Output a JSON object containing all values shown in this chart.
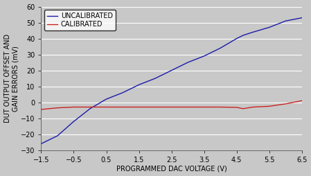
{
  "xlabel": "PROGRAMMED DAC VOLTAGE (V)",
  "ylabel": "DUT OUTPUT OFFSET AND\nGAIN ERRORS (mV)",
  "xlim": [
    -1.5,
    6.5
  ],
  "ylim": [
    -30,
    60
  ],
  "xticks": [
    -1.5,
    -0.5,
    0.5,
    1.5,
    2.5,
    3.5,
    4.5,
    5.5,
    6.5
  ],
  "yticks": [
    -30,
    -20,
    -10,
    0,
    10,
    20,
    30,
    40,
    50,
    60
  ],
  "plot_bg_color": "#c8c8c8",
  "fig_bg_color": "#c8c8c8",
  "grid_color": "#b0b0b0",
  "uncalibrated_color": "#1a1aaa",
  "calibrated_color": "#cc2222",
  "uncalibrated_label": "UNCALIBRATED",
  "calibrated_label": "CALIBRATED",
  "uncalibrated_x": [
    -1.5,
    -1.0,
    -0.5,
    0.0,
    0.5,
    1.0,
    1.5,
    2.0,
    2.5,
    3.0,
    3.5,
    3.8,
    4.0,
    4.5,
    4.7,
    5.0,
    5.5,
    6.0,
    6.5
  ],
  "uncalibrated_y": [
    -26,
    -21,
    -12,
    -4,
    2,
    6,
    11,
    15,
    20,
    25,
    29,
    32,
    34,
    40,
    42,
    44,
    47,
    51,
    53
  ],
  "calibrated_x": [
    -1.5,
    -1.0,
    -0.5,
    0.0,
    0.5,
    1.0,
    1.5,
    2.0,
    2.5,
    3.0,
    3.5,
    4.0,
    4.5,
    4.7,
    5.0,
    5.5,
    6.0,
    6.5
  ],
  "calibrated_y": [
    -4.5,
    -3.5,
    -3.0,
    -3.0,
    -3.0,
    -3.0,
    -3.0,
    -3.0,
    -3.0,
    -3.0,
    -3.0,
    -3.0,
    -3.2,
    -4.0,
    -3.0,
    -2.5,
    -1.0,
    1.0
  ],
  "legend_loc": "upper left",
  "legend_fontsize": 7,
  "axis_label_fontsize": 7,
  "tick_fontsize": 7,
  "line_width": 1.0
}
